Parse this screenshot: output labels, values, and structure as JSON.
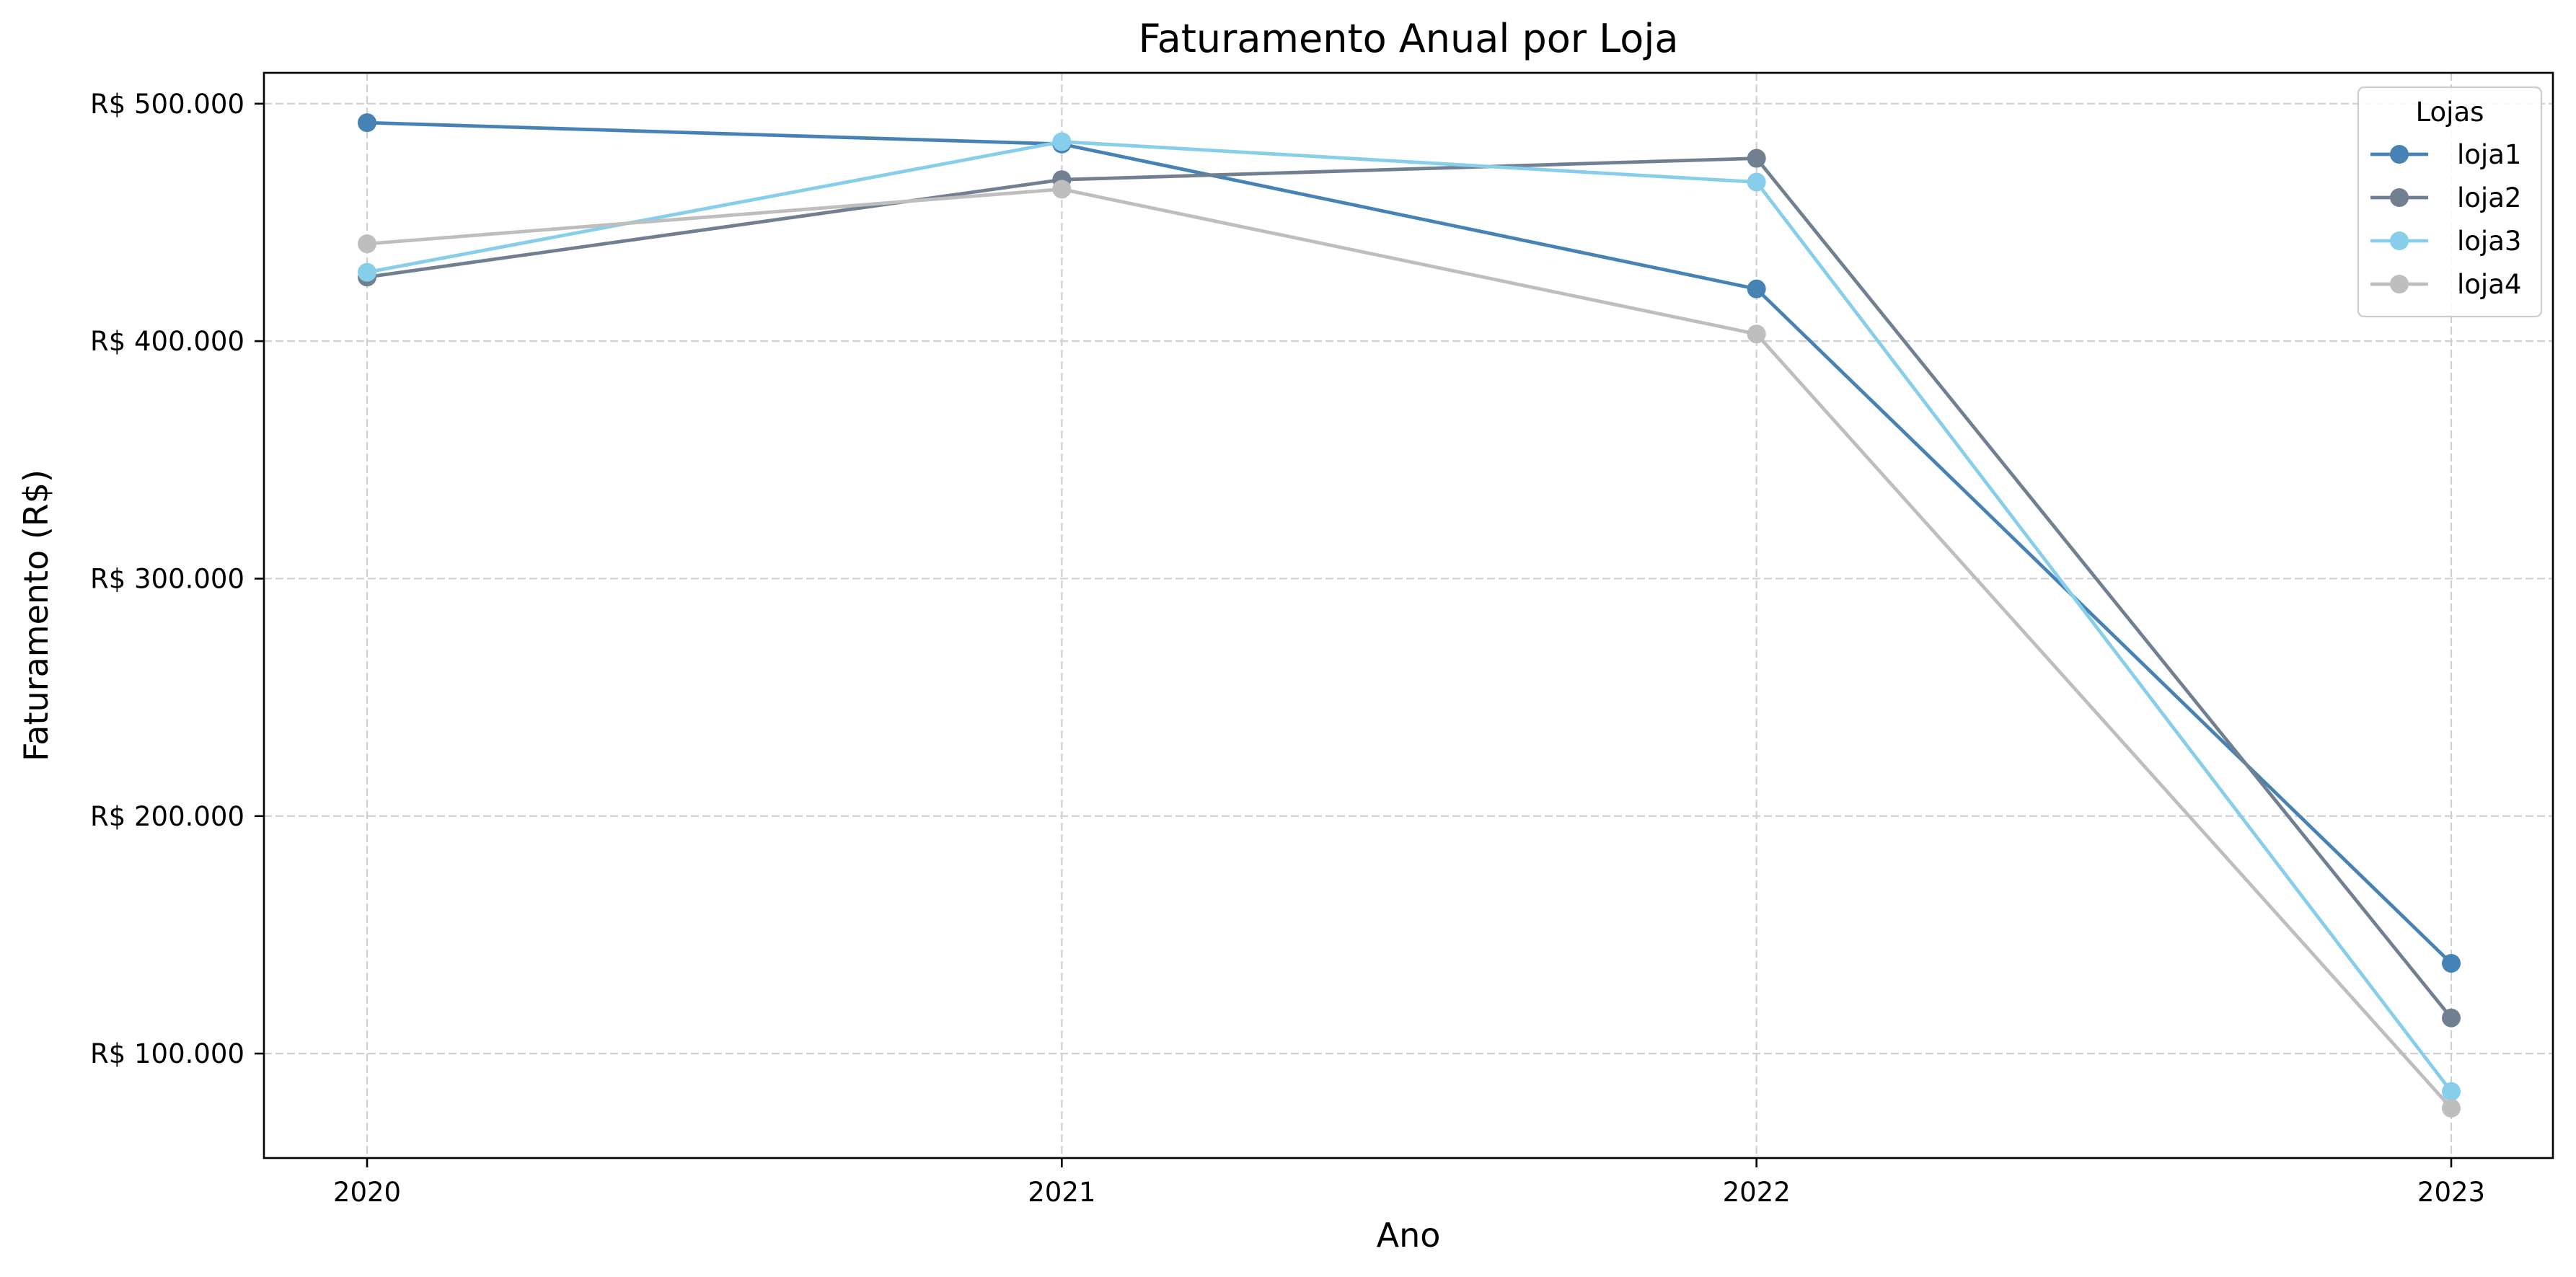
{
  "chart_data": {
    "type": "line",
    "title": "Faturamento Anual por Loja",
    "xlabel": "Ano",
    "ylabel": "Faturamento (R$)",
    "x": [
      "2020",
      "2021",
      "2022",
      "2023"
    ],
    "y_ticks": [
      100000,
      200000,
      300000,
      400000,
      500000
    ],
    "y_tick_labels": [
      "R$ 100.000",
      "R$ 200.000",
      "R$ 300.000",
      "R$ 400.000",
      "R$ 500.000"
    ],
    "ylim": [
      56000,
      513000
    ],
    "grid": true,
    "legend": {
      "title": "Lojas",
      "placement": "top-right"
    },
    "series": [
      {
        "name": "loja1",
        "color": "#4682B4",
        "values": [
          492000,
          483000,
          422000,
          138000
        ]
      },
      {
        "name": "loja2",
        "color": "#708090",
        "values": [
          427000,
          468000,
          477000,
          115000
        ]
      },
      {
        "name": "loja3",
        "color": "#87CEEB",
        "values": [
          429000,
          484000,
          467000,
          84000
        ]
      },
      {
        "name": "loja4",
        "color": "#BEBEBE",
        "values": [
          441000,
          464000,
          403000,
          77000
        ]
      }
    ]
  }
}
